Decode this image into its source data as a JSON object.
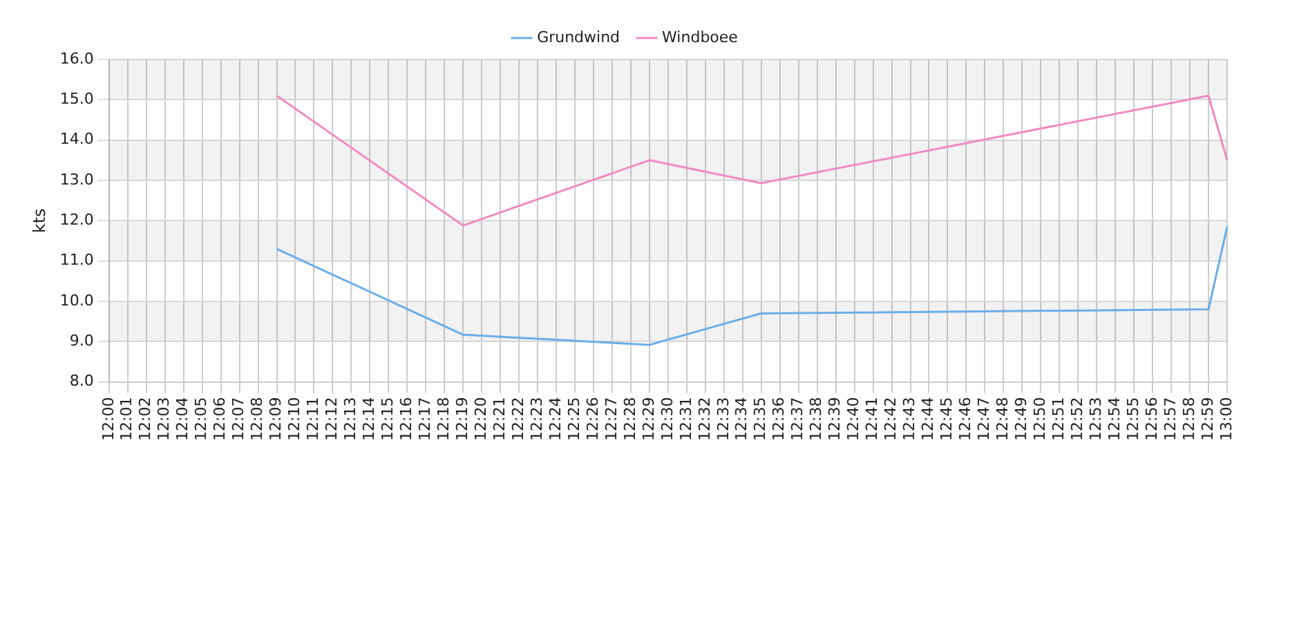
{
  "chart_data": {
    "type": "line",
    "ylabel": "kts",
    "categories": [
      "12:00",
      "12:01",
      "12:02",
      "12:03",
      "12:04",
      "12:05",
      "12:06",
      "12:07",
      "12:08",
      "12:09",
      "12:10",
      "12:11",
      "12:12",
      "12:13",
      "12:14",
      "12:15",
      "12:16",
      "12:17",
      "12:18",
      "12:19",
      "12:20",
      "12:21",
      "12:22",
      "12:23",
      "12:24",
      "12:25",
      "12:26",
      "12:27",
      "12:28",
      "12:29",
      "12:30",
      "12:31",
      "12:32",
      "12:33",
      "12:34",
      "12:35",
      "12:36",
      "12:37",
      "12:38",
      "12:39",
      "12:40",
      "12:41",
      "12:42",
      "12:43",
      "12:44",
      "12:45",
      "12:46",
      "12:47",
      "12:48",
      "12:49",
      "12:50",
      "12:51",
      "12:52",
      "12:53",
      "12:54",
      "12:55",
      "12:56",
      "12:57",
      "12:58",
      "12:59",
      "13:00"
    ],
    "series": [
      {
        "name": "Grundwind",
        "color": "#6aaee8",
        "values": [
          null,
          null,
          null,
          null,
          null,
          null,
          null,
          null,
          null,
          11.3,
          null,
          null,
          null,
          null,
          null,
          null,
          null,
          null,
          null,
          9.17,
          null,
          null,
          null,
          null,
          null,
          null,
          null,
          null,
          null,
          8.92,
          null,
          null,
          null,
          null,
          null,
          9.7,
          null,
          null,
          null,
          null,
          null,
          null,
          null,
          null,
          null,
          null,
          null,
          null,
          null,
          null,
          null,
          null,
          null,
          null,
          null,
          null,
          null,
          null,
          null,
          9.8,
          11.85
        ]
      },
      {
        "name": "Windboee",
        "color": "#f08cbf",
        "values": [
          null,
          null,
          null,
          null,
          null,
          null,
          null,
          null,
          null,
          15.1,
          null,
          null,
          null,
          null,
          null,
          null,
          null,
          null,
          null,
          11.88,
          null,
          null,
          null,
          null,
          null,
          null,
          null,
          null,
          null,
          13.5,
          null,
          null,
          null,
          null,
          null,
          12.93,
          null,
          null,
          null,
          null,
          null,
          null,
          null,
          null,
          null,
          null,
          null,
          null,
          null,
          null,
          null,
          null,
          null,
          null,
          null,
          null,
          null,
          null,
          null,
          15.1,
          13.5
        ]
      }
    ],
    "ylim": [
      8,
      16
    ],
    "yticks": [
      {
        "value": 8,
        "label": "8.0"
      },
      {
        "value": 9,
        "label": "9.0"
      },
      {
        "value": 10,
        "label": "10.0"
      },
      {
        "value": 11,
        "label": "11.0"
      },
      {
        "value": 12,
        "label": "12.0"
      },
      {
        "value": 13,
        "label": "13.0"
      },
      {
        "value": 14,
        "label": "14.0"
      },
      {
        "value": 15,
        "label": "15.0"
      },
      {
        "value": 16,
        "label": "16.0"
      }
    ],
    "grid": true,
    "legend": "top",
    "marker": "none",
    "line_style": "solid"
  }
}
